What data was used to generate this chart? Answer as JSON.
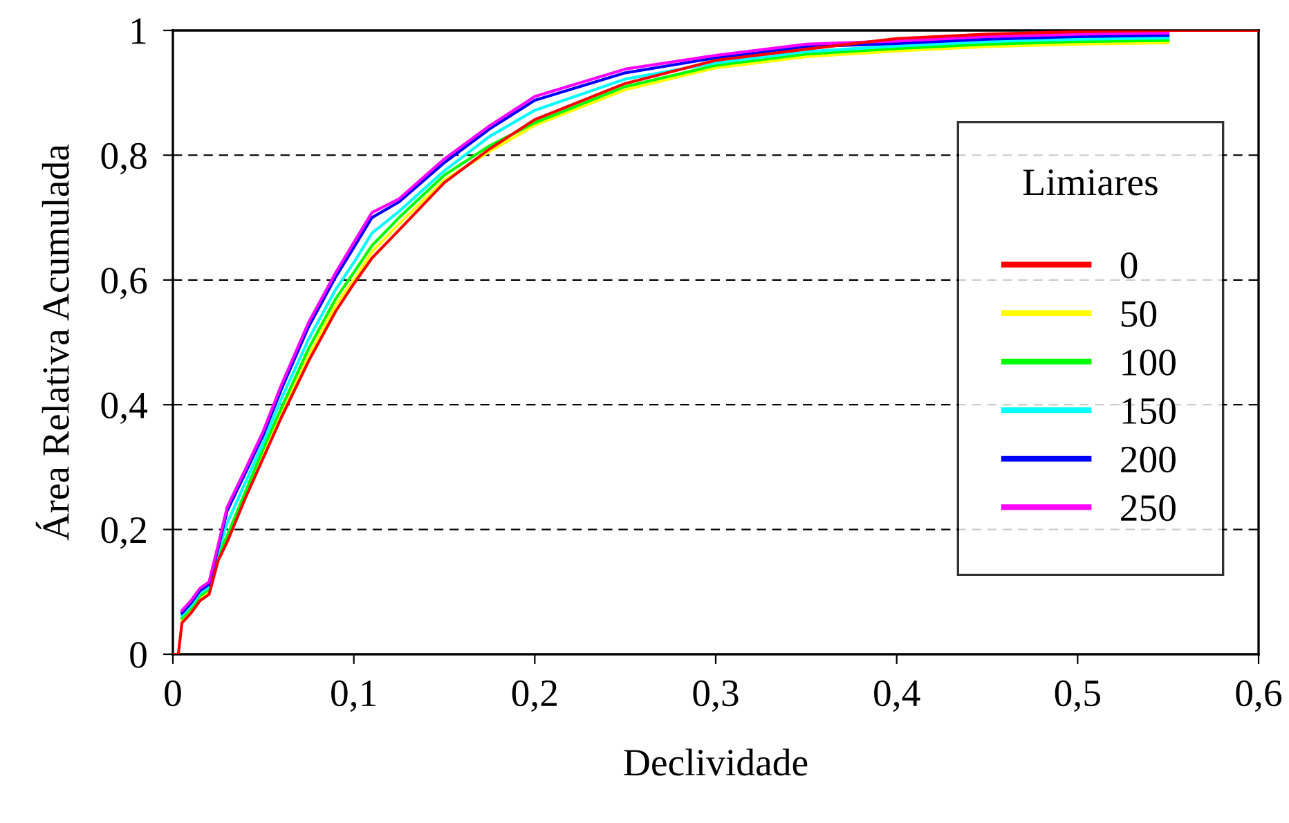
{
  "chart_data": {
    "type": "line",
    "xlabel": "Declividade",
    "ylabel": "Área Relativa Acumulada",
    "legend_title": "Limiares",
    "x": [
      0,
      0.003,
      0.005,
      0.01,
      0.015,
      0.02,
      0.025,
      0.03,
      0.04,
      0.05,
      0.06,
      0.075,
      0.09,
      0.1,
      0.11,
      0.125,
      0.15,
      0.175,
      0.2,
      0.25,
      0.3,
      0.35,
      0.4,
      0.45,
      0.5,
      0.55,
      0.6
    ],
    "series": [
      {
        "name": "0",
        "color": "#ff0000",
        "values": [
          0,
          0,
          0.05,
          0.066,
          0.086,
          0.096,
          0.15,
          0.18,
          0.25,
          0.315,
          0.38,
          0.47,
          0.55,
          0.594,
          0.635,
          0.68,
          0.756,
          0.81,
          0.857,
          0.915,
          0.952,
          0.97,
          0.987,
          0.994,
          0.998,
          1,
          1
        ]
      },
      {
        "name": "50",
        "color": "#ffff00",
        "values": [
          null,
          null,
          0.054,
          0.07,
          0.09,
          0.1,
          0.155,
          0.185,
          0.255,
          0.32,
          0.385,
          0.478,
          0.56,
          0.6,
          0.645,
          0.69,
          0.76,
          0.806,
          0.848,
          0.905,
          0.94,
          0.958,
          0.967,
          0.974,
          0.978,
          0.98,
          null
        ]
      },
      {
        "name": "100",
        "color": "#00ff00",
        "values": [
          null,
          null,
          0.058,
          0.074,
          0.094,
          0.104,
          0.16,
          0.19,
          0.26,
          0.33,
          0.395,
          0.49,
          0.57,
          0.612,
          0.655,
          0.7,
          0.768,
          0.815,
          0.852,
          0.91,
          0.944,
          0.962,
          0.971,
          0.978,
          0.982,
          0.984,
          null
        ]
      },
      {
        "name": "150",
        "color": "#00ffff",
        "values": [
          null,
          null,
          0.062,
          0.078,
          0.098,
          0.108,
          0.165,
          0.21,
          0.275,
          0.34,
          0.41,
          0.505,
          0.585,
          0.628,
          0.675,
          0.71,
          0.775,
          0.83,
          0.872,
          0.922,
          0.948,
          0.966,
          0.975,
          0.982,
          0.986,
          0.988,
          null
        ]
      },
      {
        "name": "200",
        "color": "#0000ff",
        "values": [
          null,
          null,
          0.066,
          0.082,
          0.102,
          0.112,
          0.17,
          0.23,
          0.29,
          0.352,
          0.425,
          0.525,
          0.605,
          0.652,
          0.7,
          0.725,
          0.788,
          0.842,
          0.888,
          0.932,
          0.956,
          0.974,
          0.979,
          0.986,
          0.99,
          0.992,
          null
        ]
      },
      {
        "name": "250",
        "color": "#ff00ff",
        "values": [
          null,
          null,
          0.07,
          0.086,
          0.106,
          0.116,
          0.175,
          0.236,
          0.296,
          0.358,
          0.432,
          0.532,
          0.612,
          0.66,
          0.708,
          0.73,
          0.794,
          0.847,
          0.894,
          0.938,
          0.96,
          0.978,
          0.983,
          0.99,
          0.994,
          0.996,
          null
        ]
      }
    ],
    "xlim": [
      0,
      0.6
    ],
    "ylim": [
      0,
      1
    ],
    "xticks": [
      0,
      {
        "value": 0.1,
        "label": "0,1"
      },
      {
        "value": 0.2,
        "label": "0,2"
      },
      {
        "value": 0.3,
        "label": "0,3"
      },
      {
        "value": 0.4,
        "label": "0,4"
      },
      {
        "value": 0.5,
        "label": "0,5"
      },
      {
        "value": 0.6,
        "label": "0,6"
      }
    ],
    "yticks": [
      0,
      {
        "value": 0.2,
        "label": "0,2"
      },
      {
        "value": 0.4,
        "label": "0,4"
      },
      {
        "value": 0.6,
        "label": "0,6"
      },
      {
        "value": 0.8,
        "label": "0,8"
      },
      1
    ],
    "grid": "y",
    "legend": "right",
    "line_style": "solid",
    "marker": "none"
  }
}
